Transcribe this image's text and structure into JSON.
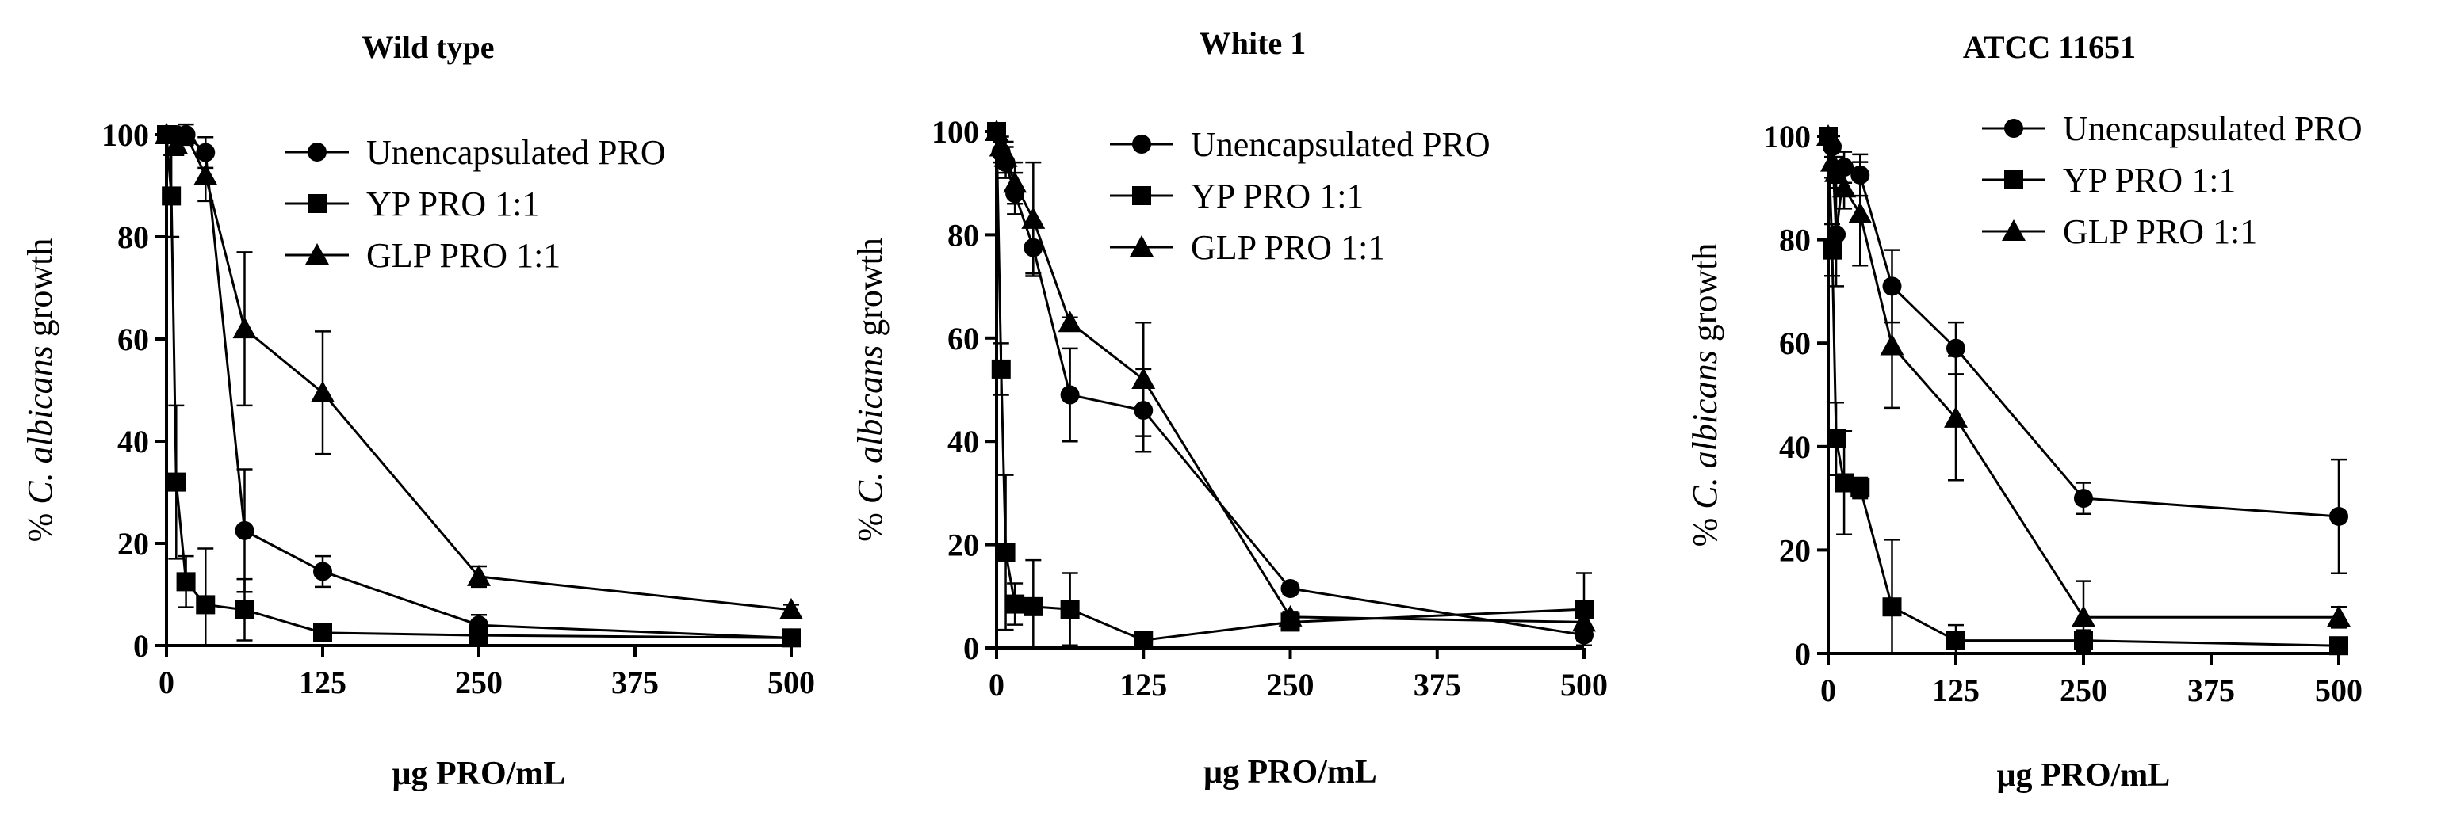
{
  "x_label": "μg PRO/mL",
  "y_label": {
    "prefix": "% ",
    "italic": "C. albicans",
    "suffix": " growth"
  },
  "chart_data": [
    {
      "type": "line",
      "title": "Wild type",
      "xlabel": "μg PRO/mL",
      "ylabel": "% C. albicans growth",
      "xlim": [
        0,
        500
      ],
      "ylim": [
        0,
        100
      ],
      "xticks": [
        0,
        125,
        250,
        375,
        500
      ],
      "yticks": [
        0,
        20,
        40,
        60,
        80,
        100
      ],
      "legend_position": "top-right",
      "series": [
        {
          "name": "Unencapsulated PRO",
          "marker": "circle",
          "x": [
            0,
            7.8,
            15.6,
            31.25,
            62.5,
            125,
            250,
            500
          ],
          "y": [
            100,
            100,
            100,
            96.5,
            22.5,
            14.5,
            4,
            1.5
          ],
          "err": [
            0,
            0,
            0,
            3,
            12,
            3,
            2,
            1
          ]
        },
        {
          "name": "YP PRO 1:1",
          "marker": "square",
          "x": [
            0,
            3.9,
            7.8,
            15.6,
            31.25,
            62.5,
            125,
            250,
            500
          ],
          "y": [
            100,
            88,
            32,
            12.5,
            8,
            7,
            2.5,
            2,
            1.5
          ],
          "err": [
            0,
            8,
            15,
            5,
            11,
            6,
            1,
            1,
            1
          ]
        },
        {
          "name": "GLP PRO 1:1",
          "marker": "triangle",
          "x": [
            0,
            7.8,
            15.6,
            31.25,
            62.5,
            125,
            250,
            500
          ],
          "y": [
            100,
            98,
            100,
            92,
            62,
            49.5,
            13.5,
            7
          ],
          "err": [
            0,
            2,
            2,
            5,
            15,
            12,
            2,
            1
          ]
        }
      ]
    },
    {
      "type": "line",
      "title": "White 1",
      "xlabel": "μg PRO/mL",
      "ylabel": "% C. albicans growth",
      "xlim": [
        0,
        500
      ],
      "ylim": [
        0,
        100
      ],
      "xticks": [
        0,
        125,
        250,
        375,
        500
      ],
      "yticks": [
        0,
        20,
        40,
        60,
        80,
        100
      ],
      "legend_position": "top-right",
      "series": [
        {
          "name": "Unencapsulated PRO",
          "marker": "circle",
          "x": [
            0,
            3.9,
            7.8,
            15.6,
            31.25,
            62.5,
            125,
            250,
            500
          ],
          "y": [
            100,
            96,
            94,
            88,
            77.5,
            49,
            46,
            11.5,
            2.5
          ],
          "err": [
            0,
            2,
            3,
            4,
            5,
            9,
            8,
            1,
            1
          ]
        },
        {
          "name": "YP PRO 1:1",
          "marker": "square",
          "x": [
            0,
            3.9,
            7.8,
            15.6,
            31.25,
            62.5,
            125,
            250,
            500
          ],
          "y": [
            100,
            54,
            18.5,
            8.5,
            8,
            7.5,
            1.5,
            5,
            7.5
          ],
          "err": [
            0,
            5,
            15,
            4,
            9,
            7,
            1,
            1,
            7
          ]
        },
        {
          "name": "GLP PRO 1:1",
          "marker": "triangle",
          "x": [
            0,
            3.9,
            7.8,
            15.6,
            31.25,
            62.5,
            125,
            250,
            500
          ],
          "y": [
            100,
            97,
            95,
            90,
            83,
            63,
            52,
            6,
            5
          ],
          "err": [
            0,
            2,
            3,
            4,
            11,
            1,
            11,
            1,
            1
          ]
        }
      ]
    },
    {
      "type": "line",
      "title": "ATCC 11651",
      "xlabel": "μg PRO/mL",
      "ylabel": "% C. albicans growth",
      "xlim": [
        0,
        500
      ],
      "ylim": [
        0,
        100
      ],
      "xticks": [
        0,
        125,
        250,
        375,
        500
      ],
      "yticks": [
        0,
        20,
        40,
        60,
        80,
        100
      ],
      "legend_position": "top-right",
      "series": [
        {
          "name": "Unencapsulated PRO",
          "marker": "circle",
          "x": [
            0,
            3.9,
            7.8,
            15.6,
            31.25,
            62.5,
            125,
            250,
            500
          ],
          "y": [
            100,
            98,
            81,
            94,
            92.5,
            71,
            59,
            30,
            26.5
          ],
          "err": [
            0,
            2,
            10,
            3,
            4,
            7,
            5,
            3,
            11
          ]
        },
        {
          "name": "YP PRO 1:1",
          "marker": "square",
          "x": [
            0,
            3.9,
            7.8,
            15.6,
            31.25,
            62.5,
            125,
            250,
            500
          ],
          "y": [
            100,
            78,
            41.5,
            33,
            32,
            9,
            2.5,
            2.5,
            1.5
          ],
          "err": [
            0,
            5,
            7,
            10,
            2,
            13,
            3,
            2,
            1
          ]
        },
        {
          "name": "GLP PRO 1:1",
          "marker": "triangle",
          "x": [
            0,
            3.9,
            7.8,
            15.6,
            31.25,
            62.5,
            125,
            250,
            500
          ],
          "y": [
            100,
            95,
            93,
            90,
            85,
            59.5,
            45.5,
            7,
            7
          ],
          "err": [
            0,
            3,
            3,
            4,
            10,
            12,
            12,
            7,
            2
          ]
        }
      ]
    }
  ]
}
